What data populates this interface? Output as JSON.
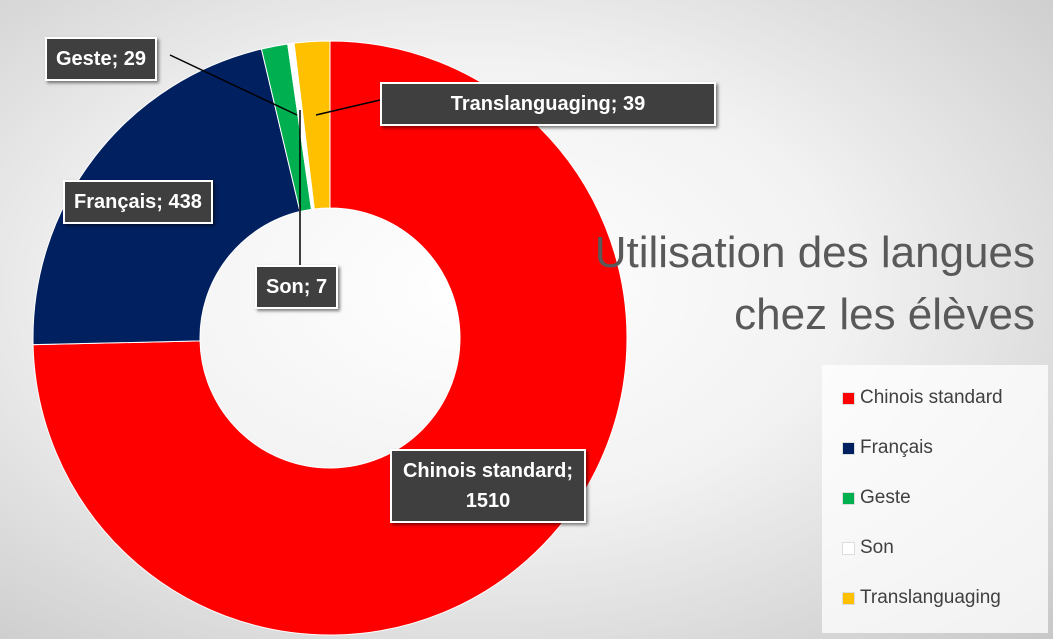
{
  "chart_data": {
    "type": "donut",
    "title": "Utilisation des langues chez les élèves",
    "categories": [
      "Chinois standard",
      "Français",
      "Geste",
      "Son",
      "Translanguaging"
    ],
    "values": [
      1510,
      438,
      29,
      7,
      39
    ],
    "value_labels": [
      "Chinois standard; 1510",
      "Français; 438",
      "Geste; 29",
      "Son; 7",
      "Translanguaging; 39"
    ],
    "colors": [
      "#ff0000",
      "#002060",
      "#00b050",
      "#ffffff",
      "#ffc000"
    ],
    "legend": "right"
  }
}
